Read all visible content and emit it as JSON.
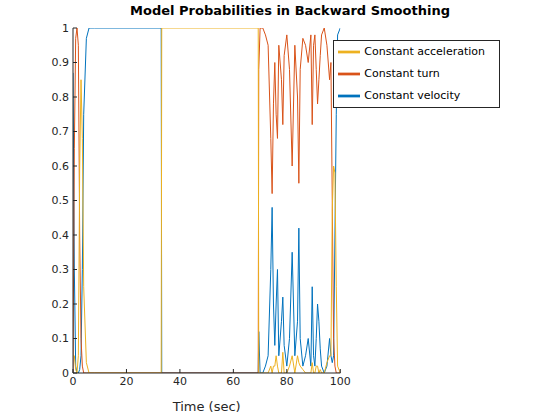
{
  "chart_data": {
    "type": "line",
    "title": "Model Probabilities in Backward Smoothing",
    "x_label": "Time (sec)",
    "x": [
      0,
      0.5,
      1,
      1.5,
      2,
      2.5,
      3,
      3.5,
      4,
      5,
      6,
      8,
      33,
      33.2,
      69.3,
      69.5,
      70,
      71,
      72,
      73,
      74,
      74.5,
      75,
      75.5,
      76,
      76.5,
      77,
      78,
      78.5,
      79,
      80,
      81,
      82,
      83,
      84,
      84.5,
      85,
      86,
      87,
      88,
      89,
      89.5,
      90,
      90.5,
      91,
      91.5,
      92,
      92.5,
      93,
      94,
      95,
      96,
      96.5,
      97,
      97.5,
      98,
      98.5,
      99,
      100
    ],
    "series": [
      {
        "name": "Constant velocity",
        "color": "#0072bd",
        "values": [
          0.87,
          0.3,
          0.02,
          0,
          0,
          0.01,
          0.05,
          0.3,
          0.75,
          0.97,
          1,
          1,
          1,
          0,
          0,
          0.12,
          0,
          0,
          0.02,
          0.05,
          0.3,
          0.48,
          0.2,
          0.08,
          0.2,
          0.3,
          0.05,
          0.15,
          0.22,
          0.08,
          0.02,
          0.1,
          0.35,
          0.05,
          0.15,
          0.42,
          0.1,
          0.02,
          0.05,
          0.1,
          0.02,
          0.25,
          0.05,
          0.02,
          0.1,
          0.2,
          0.15,
          0.07,
          0.02,
          0,
          0.02,
          0.1,
          0.05,
          0.03,
          0.05,
          0.4,
          0.75,
          0.98,
          1
        ]
      },
      {
        "name": "Constant turn",
        "color": "#d95319",
        "values": [
          0,
          0.65,
          0.97,
          1,
          0.95,
          0.4,
          0.1,
          0.02,
          0,
          0,
          0,
          0,
          0,
          0,
          0,
          0.88,
          1,
          1,
          0.98,
          0.95,
          0.68,
          0.52,
          0.78,
          0.9,
          0.75,
          0.68,
          0.95,
          0.85,
          0.72,
          0.92,
          0.98,
          0.88,
          0.6,
          0.95,
          0.8,
          0.55,
          0.88,
          0.97,
          0.95,
          0.9,
          0.98,
          0.72,
          0.95,
          0.98,
          0.88,
          0.78,
          0.85,
          0.92,
          0.98,
          1,
          0.95,
          0.85,
          0.9,
          0.5,
          0.1,
          0.02,
          0,
          0,
          0
        ]
      },
      {
        "name": "Constant acceleration",
        "color": "#edb120",
        "values": [
          0.05,
          0.05,
          0.01,
          0,
          0.05,
          0.59,
          0.85,
          0.68,
          0.25,
          0.03,
          0,
          0,
          0,
          1,
          1,
          0,
          0,
          0,
          0,
          0,
          0.02,
          0,
          0.02,
          0.02,
          0.05,
          0.02,
          0,
          0,
          0.06,
          0,
          0,
          0.02,
          0.05,
          0,
          0.05,
          0.03,
          0.02,
          0.01,
          0,
          0,
          0,
          0.03,
          0,
          0,
          0.02,
          0.02,
          0,
          0.01,
          0,
          0,
          0.03,
          0.05,
          0.05,
          0.47,
          0.6,
          0.58,
          0.25,
          0.02,
          0
        ]
      }
    ],
    "xlim": [
      0,
      100
    ],
    "xticks": [
      0,
      20,
      40,
      60,
      80,
      100
    ],
    "ylim": [
      0,
      1
    ],
    "yticks": [
      0,
      0.1,
      0.2,
      0.3,
      0.4,
      0.5,
      0.6,
      0.7,
      0.8,
      0.9,
      1
    ],
    "grid": false,
    "legend": "northeast"
  }
}
